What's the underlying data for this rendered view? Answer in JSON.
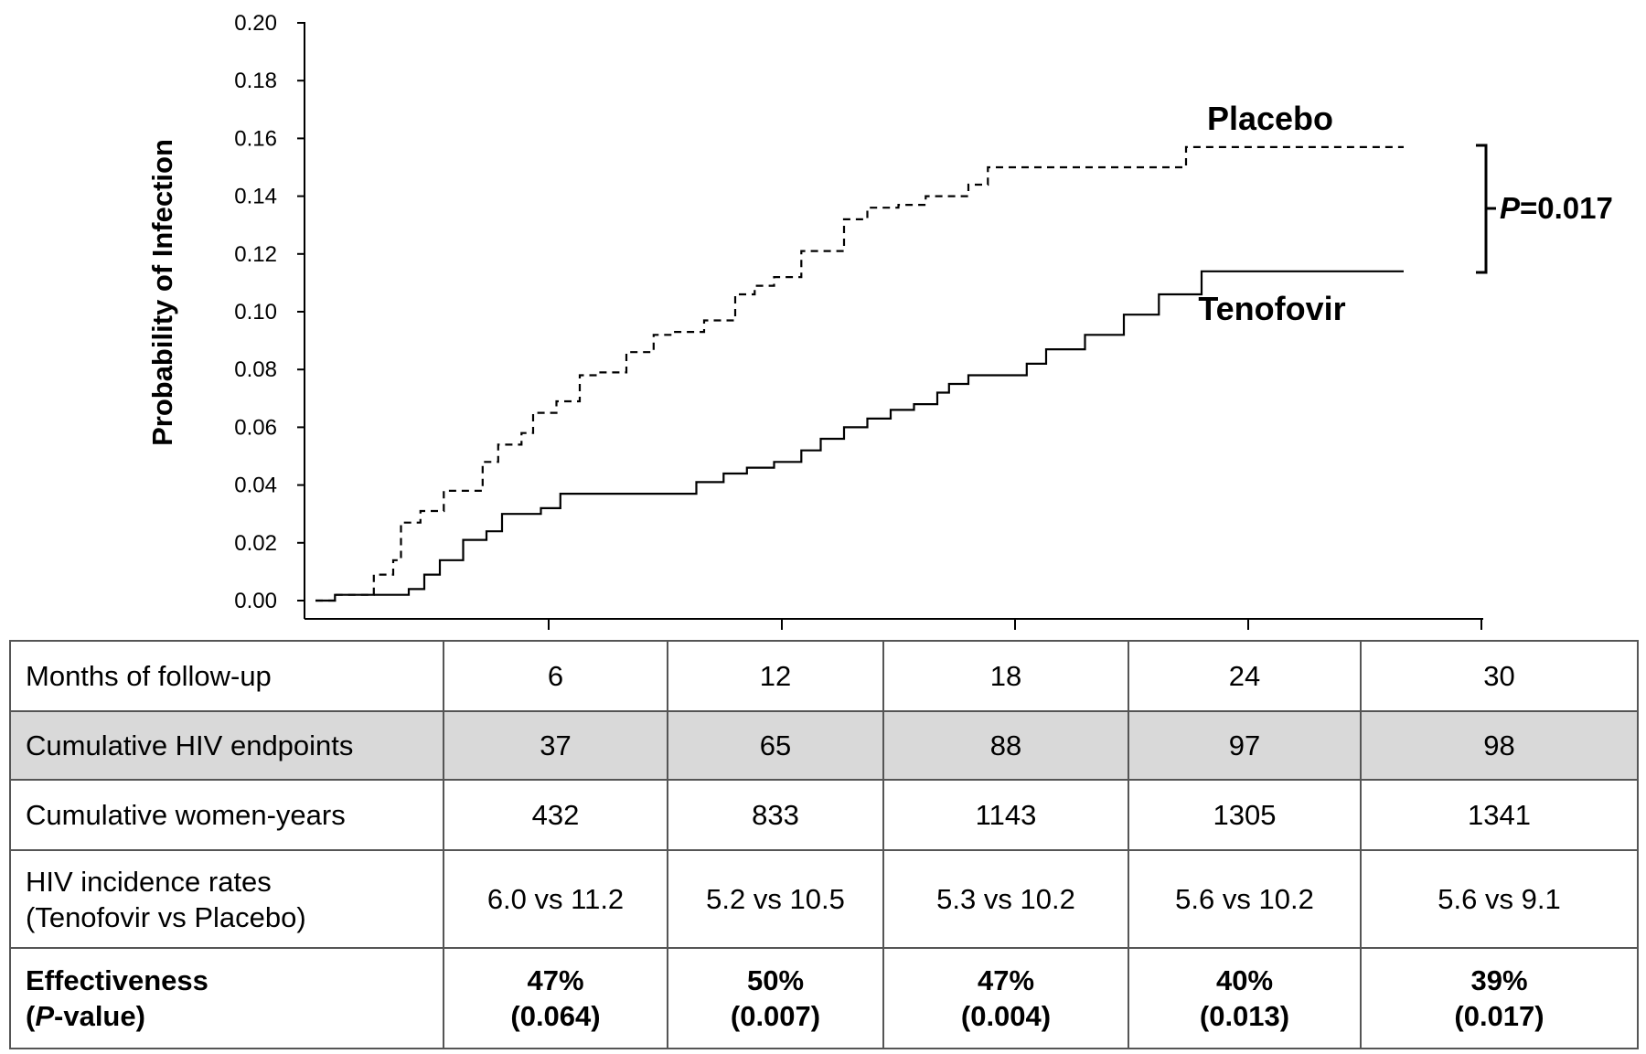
{
  "chart_data": {
    "type": "line",
    "ylabel": "Probability of Infection",
    "xlabel": "",
    "ylim": [
      0,
      0.2
    ],
    "xlim": [
      0,
      30
    ],
    "yticks": [
      "0.00",
      "0.02",
      "0.04",
      "0.06",
      "0.08",
      "0.10",
      "0.12",
      "0.14",
      "0.16",
      "0.18",
      "0.20"
    ],
    "xticks": [
      6,
      12,
      18,
      24,
      30
    ],
    "grid": false,
    "series": [
      {
        "name": "Placebo",
        "line_style": "dashed",
        "color": "#000000",
        "points": [
          [
            0.0,
            0.0
          ],
          [
            0.5,
            0.002
          ],
          [
            1.5,
            0.009
          ],
          [
            2.0,
            0.014
          ],
          [
            2.2,
            0.027
          ],
          [
            2.7,
            0.031
          ],
          [
            3.3,
            0.038
          ],
          [
            3.8,
            0.038
          ],
          [
            4.3,
            0.048
          ],
          [
            4.7,
            0.054
          ],
          [
            5.3,
            0.058
          ],
          [
            5.6,
            0.065
          ],
          [
            6.2,
            0.069
          ],
          [
            6.8,
            0.078
          ],
          [
            7.3,
            0.079
          ],
          [
            8.0,
            0.086
          ],
          [
            8.7,
            0.092
          ],
          [
            9.2,
            0.093
          ],
          [
            10.0,
            0.097
          ],
          [
            10.8,
            0.106
          ],
          [
            11.3,
            0.109
          ],
          [
            11.8,
            0.112
          ],
          [
            12.5,
            0.121
          ],
          [
            13.0,
            0.121
          ],
          [
            13.6,
            0.132
          ],
          [
            14.2,
            0.136
          ],
          [
            15.0,
            0.137
          ],
          [
            15.7,
            0.14
          ],
          [
            16.8,
            0.144
          ],
          [
            17.3,
            0.15
          ],
          [
            18.3,
            0.15
          ],
          [
            22.4,
            0.157
          ],
          [
            28.0,
            0.157
          ]
        ]
      },
      {
        "name": "Tenofovir",
        "line_style": "solid",
        "color": "#000000",
        "points": [
          [
            0.0,
            0.0
          ],
          [
            0.5,
            0.002
          ],
          [
            2.4,
            0.004
          ],
          [
            2.8,
            0.009
          ],
          [
            3.2,
            0.014
          ],
          [
            3.8,
            0.021
          ],
          [
            4.4,
            0.024
          ],
          [
            4.8,
            0.03
          ],
          [
            5.3,
            0.03
          ],
          [
            5.8,
            0.032
          ],
          [
            6.3,
            0.037
          ],
          [
            9.8,
            0.041
          ],
          [
            10.5,
            0.044
          ],
          [
            11.1,
            0.046
          ],
          [
            11.8,
            0.048
          ],
          [
            12.5,
            0.052
          ],
          [
            13.0,
            0.056
          ],
          [
            13.6,
            0.06
          ],
          [
            14.2,
            0.063
          ],
          [
            14.8,
            0.066
          ],
          [
            15.4,
            0.068
          ],
          [
            16.0,
            0.072
          ],
          [
            16.3,
            0.075
          ],
          [
            16.8,
            0.078
          ],
          [
            18.3,
            0.082
          ],
          [
            18.8,
            0.087
          ],
          [
            19.8,
            0.092
          ],
          [
            20.8,
            0.099
          ],
          [
            21.7,
            0.106
          ],
          [
            22.8,
            0.114
          ],
          [
            28.0,
            0.114
          ]
        ]
      }
    ],
    "annotation": {
      "text": "=0.017",
      "italic_prefix": "P"
    }
  },
  "table": {
    "rows": [
      {
        "label": "Months of follow-up",
        "values": [
          "6",
          "12",
          "18",
          "24",
          "30"
        ]
      },
      {
        "label": "Cumulative HIV endpoints",
        "values": [
          "37",
          "65",
          "88",
          "97",
          "98"
        ]
      },
      {
        "label": "Cumulative women-years",
        "values": [
          "432",
          "833",
          "1143",
          "1305",
          "1341"
        ]
      },
      {
        "label": "HIV incidence rates",
        "label_line2": "(Tenofovir vs Placebo)",
        "values": [
          "6.0 vs 11.2",
          "5.2 vs 10.5",
          "5.3 vs 10.2",
          "5.6 vs 10.2",
          "5.6 vs 9.1"
        ]
      },
      {
        "label": "Effectiveness",
        "label_line2_italic": "P",
        "label_line2_rest": "-value)",
        "values": [
          "47%",
          "50%",
          "47%",
          "40%",
          "39%"
        ],
        "values_line2": [
          "(0.064)",
          "(0.007)",
          "(0.004)",
          "(0.013)",
          "(0.017)"
        ]
      }
    ]
  }
}
